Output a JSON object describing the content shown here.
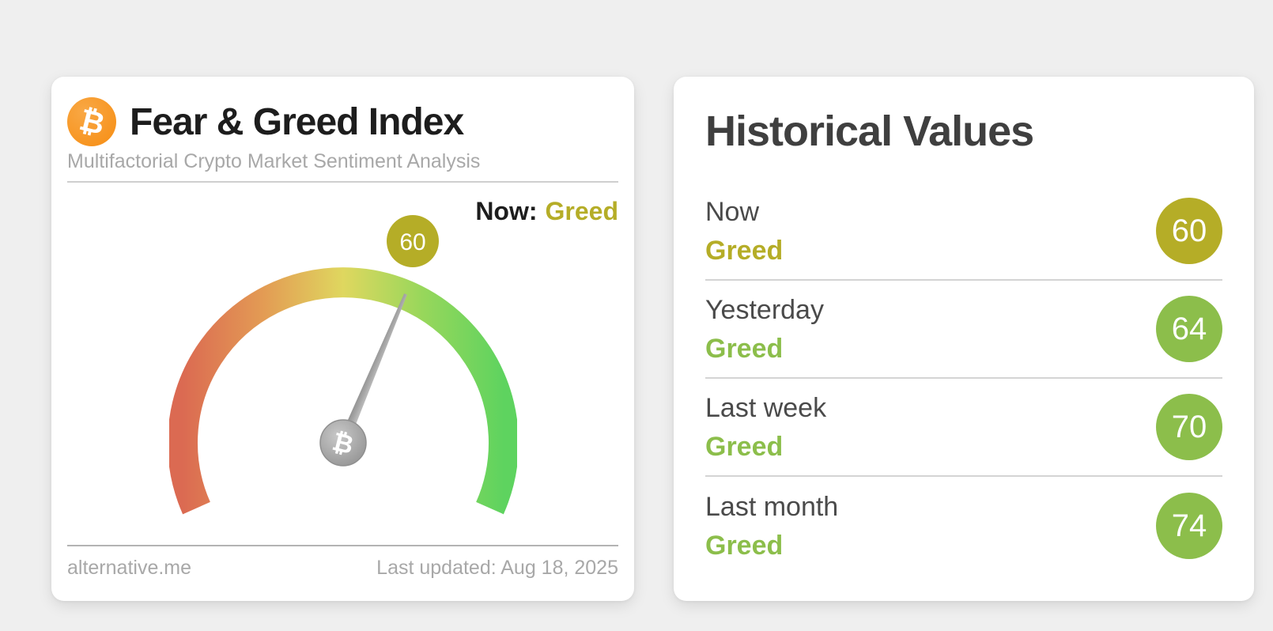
{
  "fear_greed_card": {
    "title": "Fear & Greed Index",
    "subtitle": "Multifactorial Crypto Market Sentiment Analysis",
    "now_prefix": "Now:",
    "now_classification": "Greed",
    "now_classification_color": "#b5ad27",
    "bitcoin_icon_glyph": "₿",
    "bitcoin_icon_color": "#f7941d",
    "footer_source": "alternative.me",
    "footer_updated": "Last updated: Aug 18, 2025"
  },
  "historical_panel": {
    "title": "Historical Values",
    "rows": [
      {
        "label": "Now",
        "classification": "Greed",
        "value": 60,
        "badge_color": "#b5ad27",
        "classification_color": "#b5ad27"
      },
      {
        "label": "Yesterday",
        "classification": "Greed",
        "value": 64,
        "badge_color": "#8cbe4b",
        "classification_color": "#8cbe4b"
      },
      {
        "label": "Last week",
        "classification": "Greed",
        "value": 70,
        "badge_color": "#8cbe4b",
        "classification_color": "#8cbe4b"
      },
      {
        "label": "Last month",
        "classification": "Greed",
        "value": 74,
        "badge_color": "#8cbe4b",
        "classification_color": "#8cbe4b"
      }
    ]
  },
  "chart_data": {
    "type": "gauge",
    "title": "Fear & Greed Index",
    "value": 60,
    "classification": "Greed",
    "scale_min": 0,
    "scale_max": 100,
    "arc_sweep_deg": 228,
    "arc_color_stops": [
      "#db6a52",
      "#e39b54",
      "#dfd75f",
      "#97d75b",
      "#5ed35f"
    ],
    "badge_color": "#b5ad27",
    "needle_color": "#9a9a9a",
    "history": [
      {
        "label": "Now",
        "value": 60,
        "classification": "Greed"
      },
      {
        "label": "Yesterday",
        "value": 64,
        "classification": "Greed"
      },
      {
        "label": "Last week",
        "value": 70,
        "classification": "Greed"
      },
      {
        "label": "Last month",
        "value": 74,
        "classification": "Greed"
      }
    ]
  }
}
